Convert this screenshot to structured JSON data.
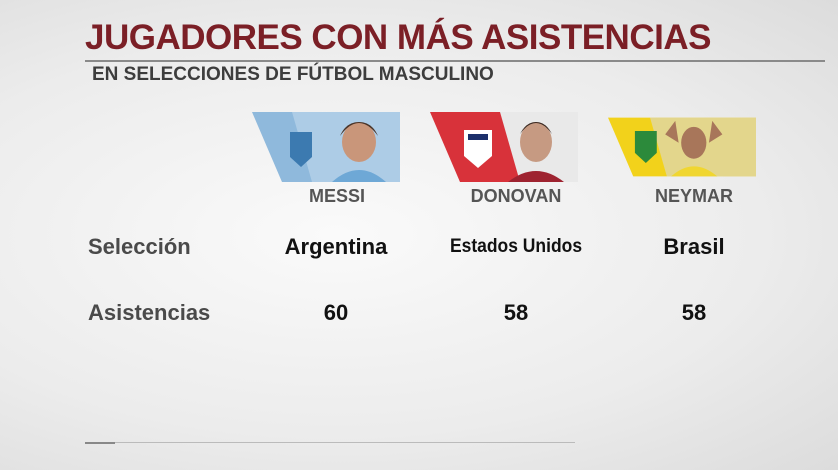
{
  "header": {
    "title": "JUGADORES CON MÁS ASISTENCIAS",
    "subtitle": "EN SELECCIONES DE FÚTBOL MASCULINO"
  },
  "table": {
    "players": [
      "MESSI",
      "DONOVAN",
      "NEYMAR"
    ],
    "rows": [
      {
        "label": "Selección",
        "cells": [
          "Argentina",
          "Estados Unidos",
          "Brasil"
        ]
      },
      {
        "label": "Asistencias",
        "cells": [
          60,
          58,
          58
        ]
      }
    ]
  }
}
